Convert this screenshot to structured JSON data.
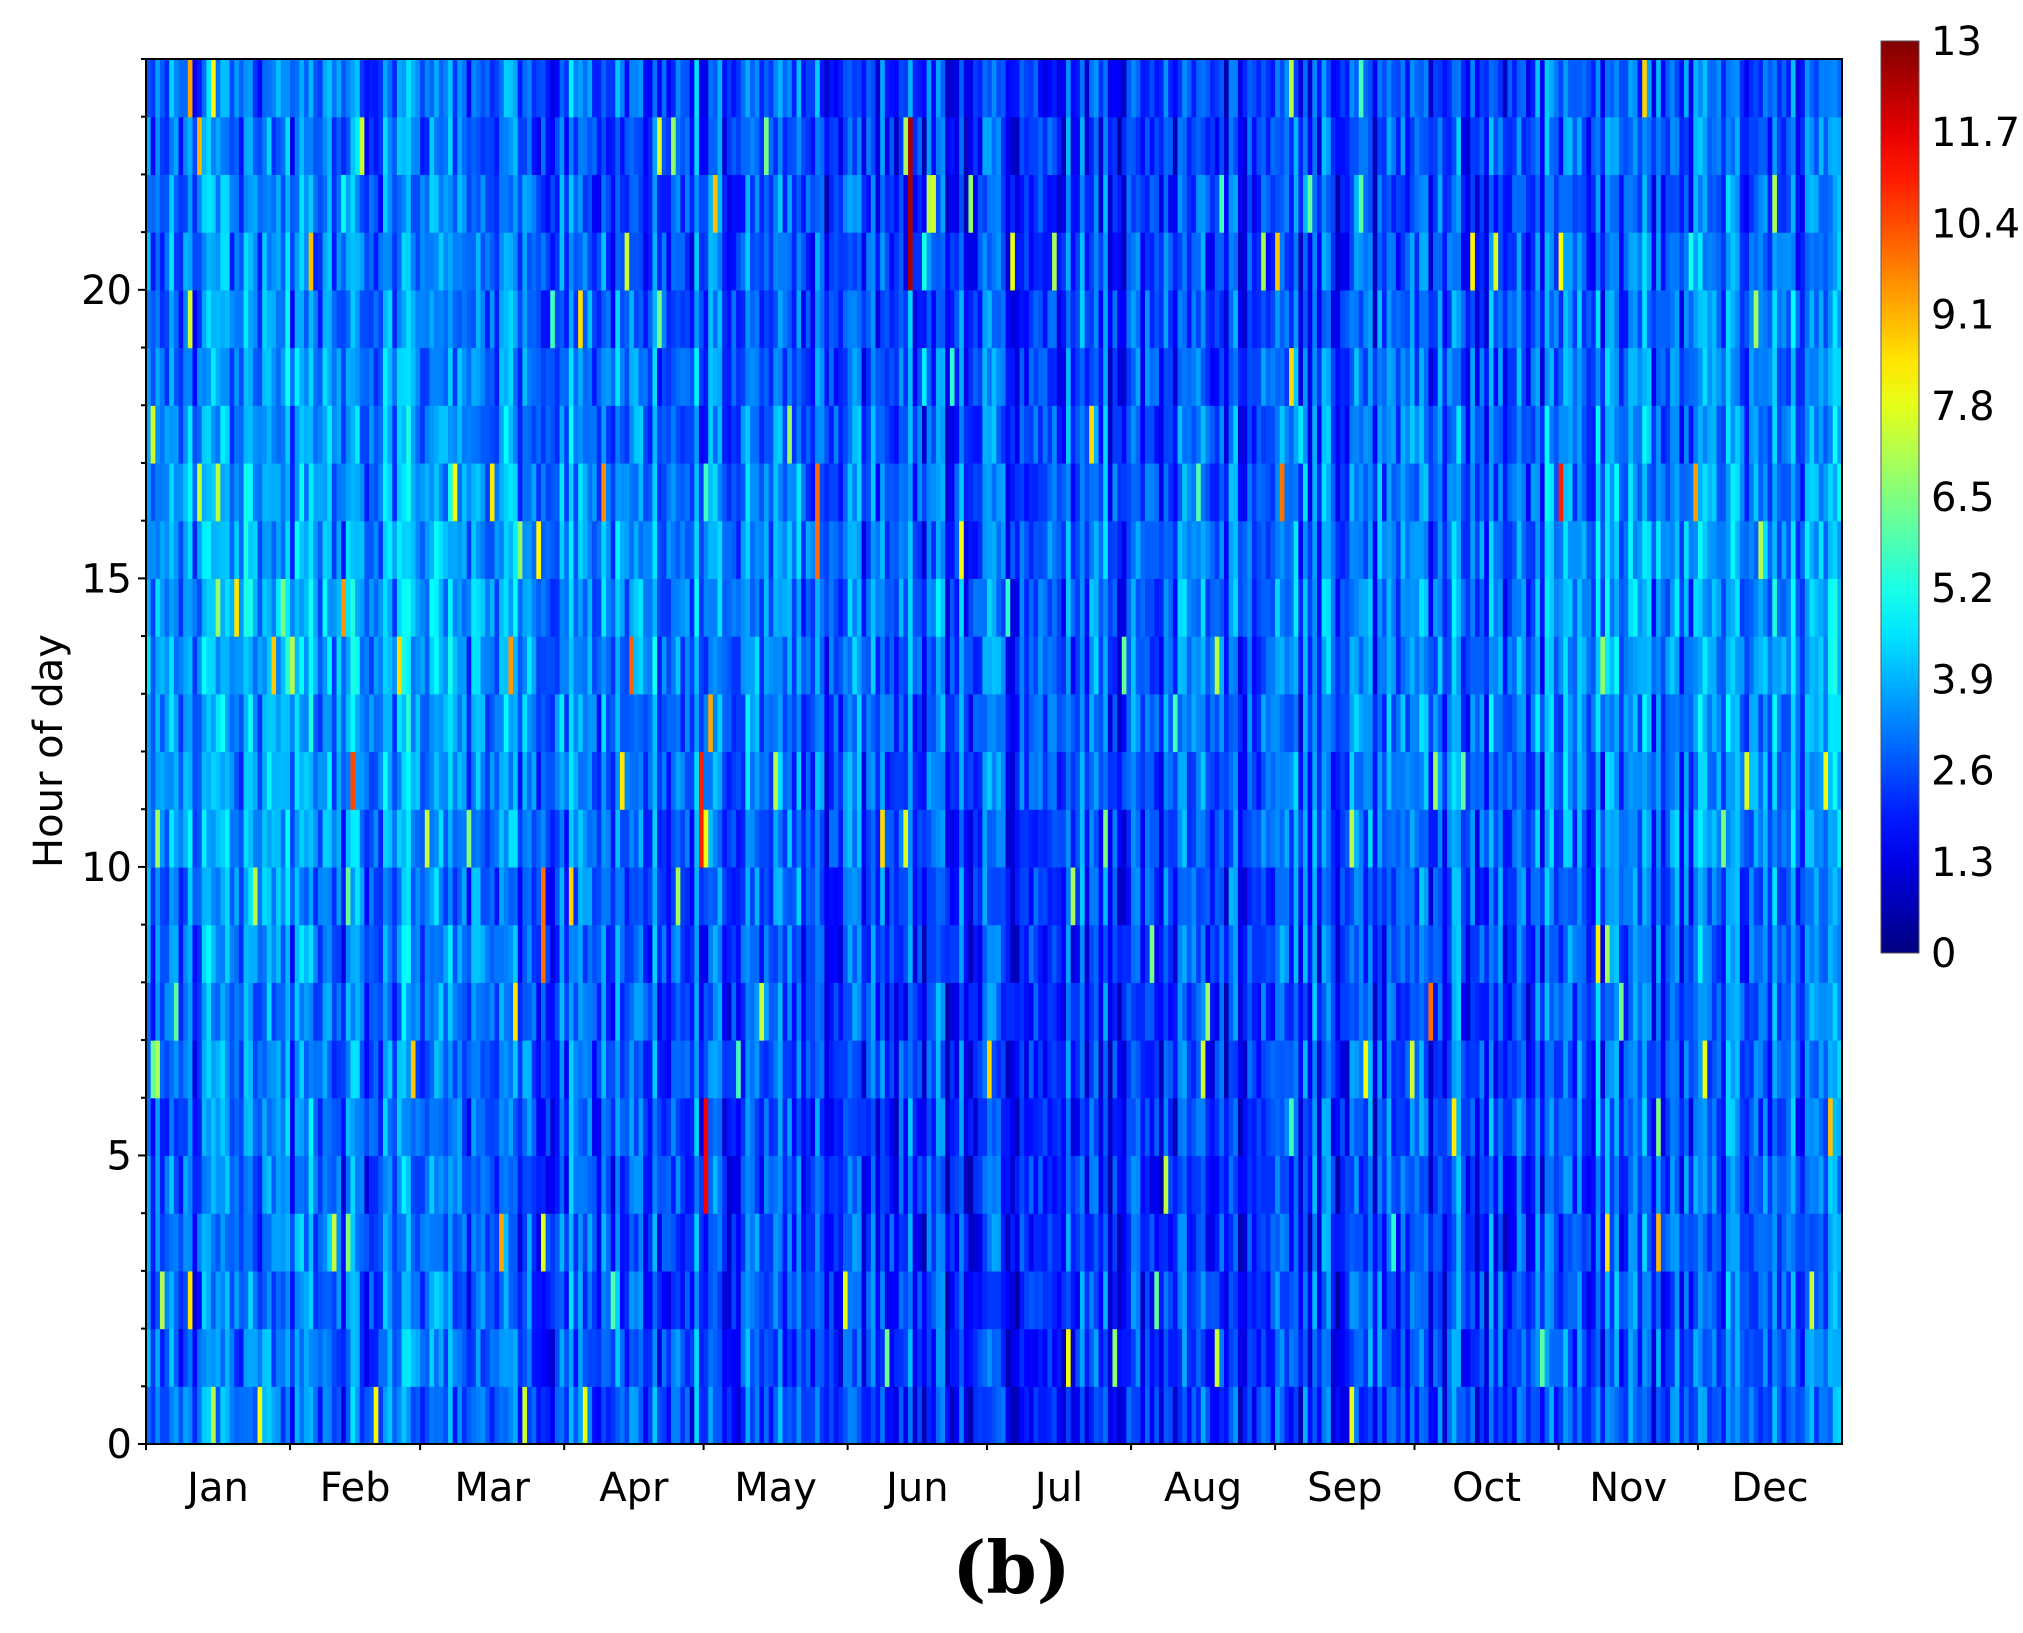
{
  "chart_data": {
    "type": "heatmap",
    "title": "",
    "xlabel": "",
    "ylabel": "Hour of day",
    "x_tick_labels": [
      "Jan",
      "Feb",
      "Mar",
      "Apr",
      "May",
      "Jun",
      "Jul",
      "Aug",
      "Sep",
      "Oct",
      "Nov",
      "Dec"
    ],
    "y_ticks": [
      0,
      5,
      10,
      15,
      20
    ],
    "y_tick_labels": [
      "0",
      "5",
      "10",
      "15",
      "20"
    ],
    "xlim": [
      1,
      365
    ],
    "ylim": [
      0,
      24
    ],
    "days": 365,
    "hours": 24,
    "colorbar": {
      "min": 0,
      "max": 13,
      "ticks": [
        0,
        1.3,
        2.6,
        3.9,
        5.2,
        6.5,
        7.8,
        9.1,
        10.4,
        11.7,
        13
      ],
      "tick_labels": [
        "0",
        "1.3",
        "2.6",
        "3.9",
        "5.2",
        "6.5",
        "7.8",
        "9.1",
        "10.4",
        "11.7",
        "13"
      ],
      "colormap": "jet"
    },
    "values_note": "Hourly values per day, 0–13, mostly 1.5–5 with scattered peaks up to about 13",
    "hotspots": [
      {
        "day": 165,
        "hour_start": 20,
        "hour_end": 23,
        "value": 12.5
      },
      {
        "day": 121,
        "hour_start": 4,
        "hour_end": 6,
        "value": 11.5
      },
      {
        "day": 120,
        "hour_start": 10,
        "hour_end": 12,
        "value": 11
      },
      {
        "day": 145,
        "hour_start": 15,
        "hour_end": 17,
        "value": 10
      },
      {
        "day": 277,
        "hour_start": 7,
        "hour_end": 8,
        "value": 10
      },
      {
        "day": 305,
        "hour_start": 16,
        "hour_end": 17,
        "value": 11
      },
      {
        "day": 86,
        "hour_start": 8,
        "hour_end": 10,
        "value": 10
      },
      {
        "day": 43,
        "hour_start": 14,
        "hour_end": 15,
        "value": 9.5
      }
    ]
  },
  "panel_label": "(b)"
}
